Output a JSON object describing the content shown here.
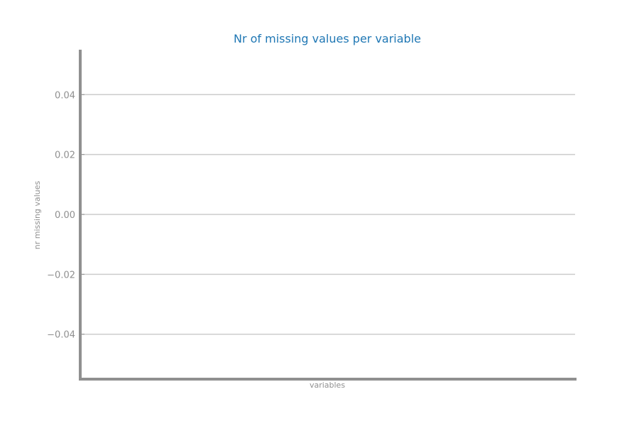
{
  "chart_data": {
    "type": "bar",
    "title": "Nr of missing values per variable",
    "xlabel": "variables",
    "ylabel": "nr missing values",
    "categories": [],
    "values": [],
    "ylim": [
      -0.055,
      0.055
    ],
    "yticks": [
      0.04,
      0.02,
      0.0,
      -0.02,
      -0.04
    ],
    "ytick_labels": [
      "0.04",
      "0.02",
      "0.00",
      "−0.02",
      "−0.04"
    ],
    "grid": "horizontal",
    "colors": {
      "title": "#1f77b4",
      "axis": "#909090",
      "grid": "#cccccc",
      "tick_text": "#909090"
    }
  }
}
